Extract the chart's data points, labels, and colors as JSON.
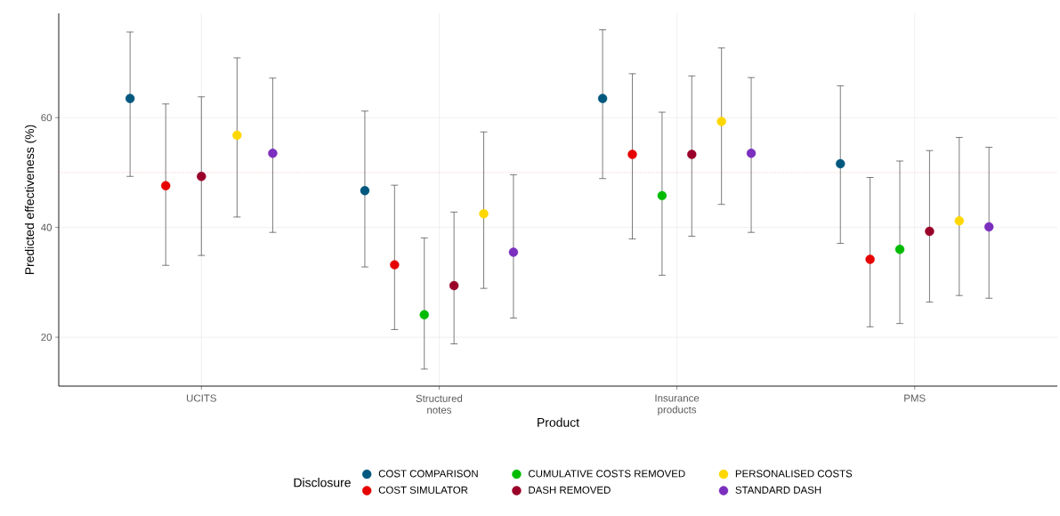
{
  "chart_data": {
    "type": "scatter",
    "xlabel": "Product",
    "ylabel": "Predicted effectiveness (%)",
    "legend_title": "Disclosure",
    "categories": [
      "UCITS",
      "Structured notes",
      "Insurance products",
      "PMS"
    ],
    "series": [
      {
        "name": "COST COMPARISON",
        "color": "#00587f",
        "values": [
          63.5,
          46.7,
          63.5,
          51.6
        ],
        "errors": [
          [
            49.3,
            75.6
          ],
          [
            32.8,
            61.2
          ],
          [
            48.9,
            76.0
          ],
          [
            37.1,
            65.8
          ]
        ]
      },
      {
        "name": "COST SIMULATOR",
        "color": "#e60000",
        "values": [
          47.6,
          33.2,
          53.3,
          34.2
        ],
        "errors": [
          [
            33.1,
            62.5
          ],
          [
            21.4,
            47.7
          ],
          [
            37.9,
            68.0
          ],
          [
            21.9,
            49.1
          ]
        ]
      },
      {
        "name": "CUMULATIVE COSTS REMOVED",
        "color": "#00bb00",
        "values": [
          null,
          24.1,
          45.8,
          36.0
        ],
        "errors": [
          null,
          [
            14.2,
            38.1
          ],
          [
            31.3,
            61.0
          ],
          [
            22.5,
            52.1
          ]
        ]
      },
      {
        "name": "DASH REMOVED",
        "color": "#9a0029",
        "values": [
          49.3,
          29.4,
          53.3,
          39.3
        ],
        "errors": [
          [
            34.9,
            63.8
          ],
          [
            18.8,
            42.8
          ],
          [
            38.4,
            67.6
          ],
          [
            26.4,
            54.0
          ]
        ]
      },
      {
        "name": "PERSONALISED COSTS",
        "color": "#ffd700",
        "values": [
          56.8,
          42.5,
          59.3,
          41.2
        ],
        "errors": [
          [
            41.9,
            70.9
          ],
          [
            28.9,
            57.4
          ],
          [
            44.2,
            72.7
          ],
          [
            27.6,
            56.4
          ]
        ]
      },
      {
        "name": "STANDARD DASH",
        "color": "#7b2fbe",
        "values": [
          53.5,
          35.5,
          53.5,
          40.1
        ],
        "errors": [
          [
            39.1,
            67.2
          ],
          [
            23.5,
            49.6
          ],
          [
            39.1,
            67.3
          ],
          [
            27.1,
            54.6
          ]
        ]
      }
    ],
    "ylim": [
      11.1,
      79
    ],
    "yticks": [
      20,
      40,
      60
    ],
    "ref_lines": [
      {
        "axis": "y",
        "value": 50,
        "color": "#e07a7a",
        "line_style": "dotted"
      }
    ],
    "grid": true,
    "legend": "bottom"
  }
}
